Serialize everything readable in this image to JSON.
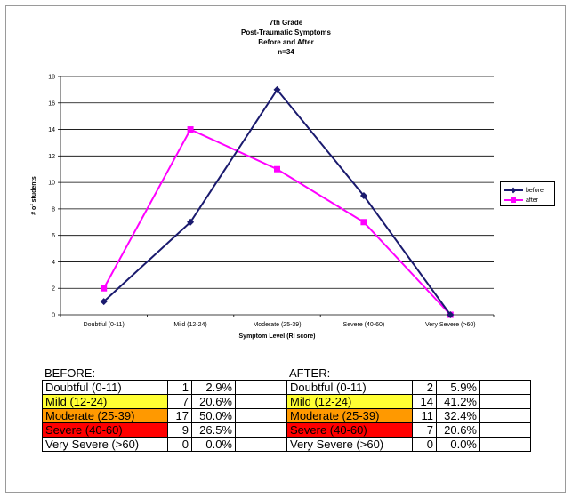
{
  "chart_data": {
    "type": "line",
    "title": [
      "7th Grade",
      "Post-Traumatic Symptoms",
      "Before and After",
      "n=34"
    ],
    "xlabel": "Symptom Level (RI score)",
    "ylabel": "# of students",
    "categories": [
      "Doubtful (0-11)",
      "Mild (12-24)",
      "Moderate (25-39)",
      "Severe (40-60)",
      "Very Severe (>60)"
    ],
    "ylim": [
      0,
      18
    ],
    "yticks": [
      0,
      2,
      4,
      6,
      8,
      10,
      12,
      14,
      16,
      18
    ],
    "grid": true,
    "legend_position": "right",
    "series": [
      {
        "name": "before",
        "values": [
          1,
          7,
          17,
          9,
          0
        ],
        "color": "#1a1a6e",
        "marker": "diamond"
      },
      {
        "name": "after",
        "values": [
          2,
          14,
          11,
          7,
          0
        ],
        "color": "#ff00ff",
        "marker": "square"
      }
    ]
  },
  "tables": {
    "before": {
      "caption": "BEFORE:",
      "rows": [
        {
          "label": "Doubtful (0-11)",
          "n": "1",
          "pct": "2.9%",
          "color": "#ffffff"
        },
        {
          "label": "Mild (12-24)",
          "n": "7",
          "pct": "20.6%",
          "color": "#ffff33"
        },
        {
          "label": "Moderate (25-39)",
          "n": "17",
          "pct": "50.0%",
          "color": "#ff9900"
        },
        {
          "label": "Severe (40-60)",
          "n": "9",
          "pct": "26.5%",
          "color": "#ff0000"
        },
        {
          "label": "Very Severe (>60)",
          "n": "0",
          "pct": "0.0%",
          "color": "#ffffff"
        }
      ]
    },
    "after": {
      "caption": "AFTER:",
      "rows": [
        {
          "label": "Doubtful (0-11)",
          "n": "2",
          "pct": "5.9%",
          "color": "#ffffff"
        },
        {
          "label": "Mild (12-24)",
          "n": "14",
          "pct": "41.2%",
          "color": "#ffff33"
        },
        {
          "label": "Moderate (25-39)",
          "n": "11",
          "pct": "32.4%",
          "color": "#ff9900"
        },
        {
          "label": "Severe (40-60)",
          "n": "7",
          "pct": "20.6%",
          "color": "#ff0000"
        },
        {
          "label": "Very Severe (>60)",
          "n": "0",
          "pct": "0.0%",
          "color": "#ffffff"
        }
      ]
    }
  }
}
